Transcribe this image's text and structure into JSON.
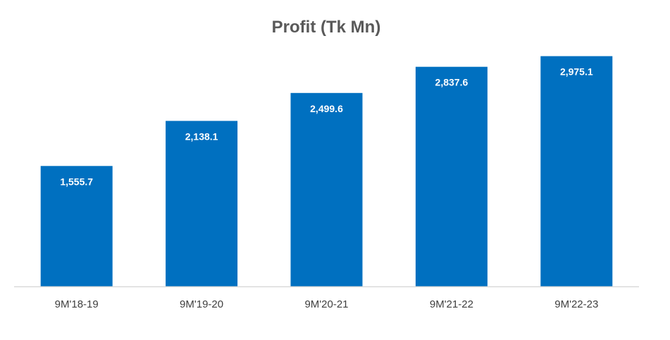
{
  "chart_data": {
    "type": "bar",
    "title": "Profit (Tk Mn)",
    "categories": [
      "9M'18-19",
      "9M'19-20",
      "9M'20-21",
      "9M'21-22",
      "9M'22-23"
    ],
    "values": [
      1555.7,
      2138.1,
      2499.6,
      2837.6,
      2975.1
    ],
    "value_labels": [
      "1,555.7",
      "2,138.1",
      "2,499.6",
      "2,837.6",
      "2,975.1"
    ],
    "xlabel": "",
    "ylabel": "",
    "ylim": [
      0,
      3500
    ],
    "grid": false,
    "legend": "none",
    "colors": {
      "bar": "#0070C0",
      "axis": "#D9D9D9",
      "title": "#595959",
      "tick": "#404040",
      "data_label": "#FFFFFF"
    }
  }
}
